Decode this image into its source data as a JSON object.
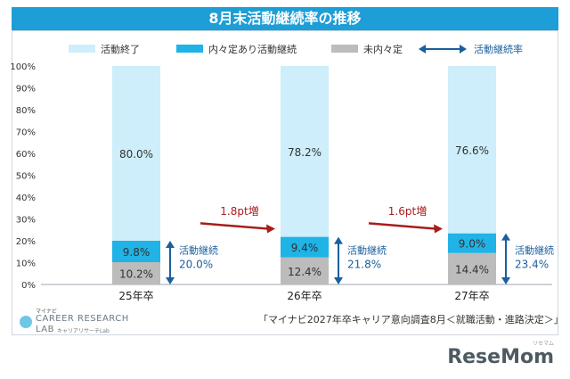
{
  "title": "8月末活動継続率の推移",
  "source": "「マイナビ2027年卒キャリア意向調査8月＜就職活動・進路決定＞」",
  "logo": {
    "small": "マイナビ",
    "line1": "CAREER RESEARCH",
    "line2": "LAB",
    "line2_sub": "キャリアリサーチLab"
  },
  "brand": "ReseMom",
  "brand_small": "リセマム",
  "colors": {
    "finished": "#cdeefa",
    "continuing_with_offer": "#1fb3e6",
    "no_offer": "#bcbcbc",
    "continuation_arrow": "#1a5f9e",
    "increase_arrow": "#a81d1d",
    "header": "#1e9ed6"
  },
  "chart_data": {
    "type": "bar",
    "stacked": true,
    "title": "8月末活動継続率の推移",
    "categories": [
      "25年卒",
      "26年卒",
      "27年卒"
    ],
    "ylim": [
      0,
      100
    ],
    "yticks": [
      "0%",
      "10%",
      "20%",
      "30%",
      "40%",
      "50%",
      "60%",
      "70%",
      "80%",
      "90%",
      "100%"
    ],
    "grid": false,
    "legend_position": "top",
    "legend": [
      "活動終了",
      "内々定あり活動継続",
      "未内々定",
      "活動継続率"
    ],
    "series": [
      {
        "name": "未内々定",
        "values": [
          10.2,
          12.4,
          14.4
        ],
        "labels": [
          "10.2%",
          "12.4%",
          "14.4%"
        ]
      },
      {
        "name": "内々定あり活動継続",
        "values": [
          9.8,
          9.4,
          9.0
        ],
        "labels": [
          "9.8%",
          "9.4%",
          "9.0%"
        ]
      },
      {
        "name": "活動終了",
        "values": [
          80.0,
          78.2,
          76.6
        ],
        "labels": [
          "80.0%",
          "78.2%",
          "76.6%"
        ]
      }
    ],
    "continuation": {
      "label": "活動継続",
      "values": [
        20.0,
        21.8,
        23.4
      ],
      "labels": [
        "20.0%",
        "21.8%",
        "23.4%"
      ]
    },
    "increases": [
      "1.8pt増",
      "1.6pt増"
    ]
  }
}
